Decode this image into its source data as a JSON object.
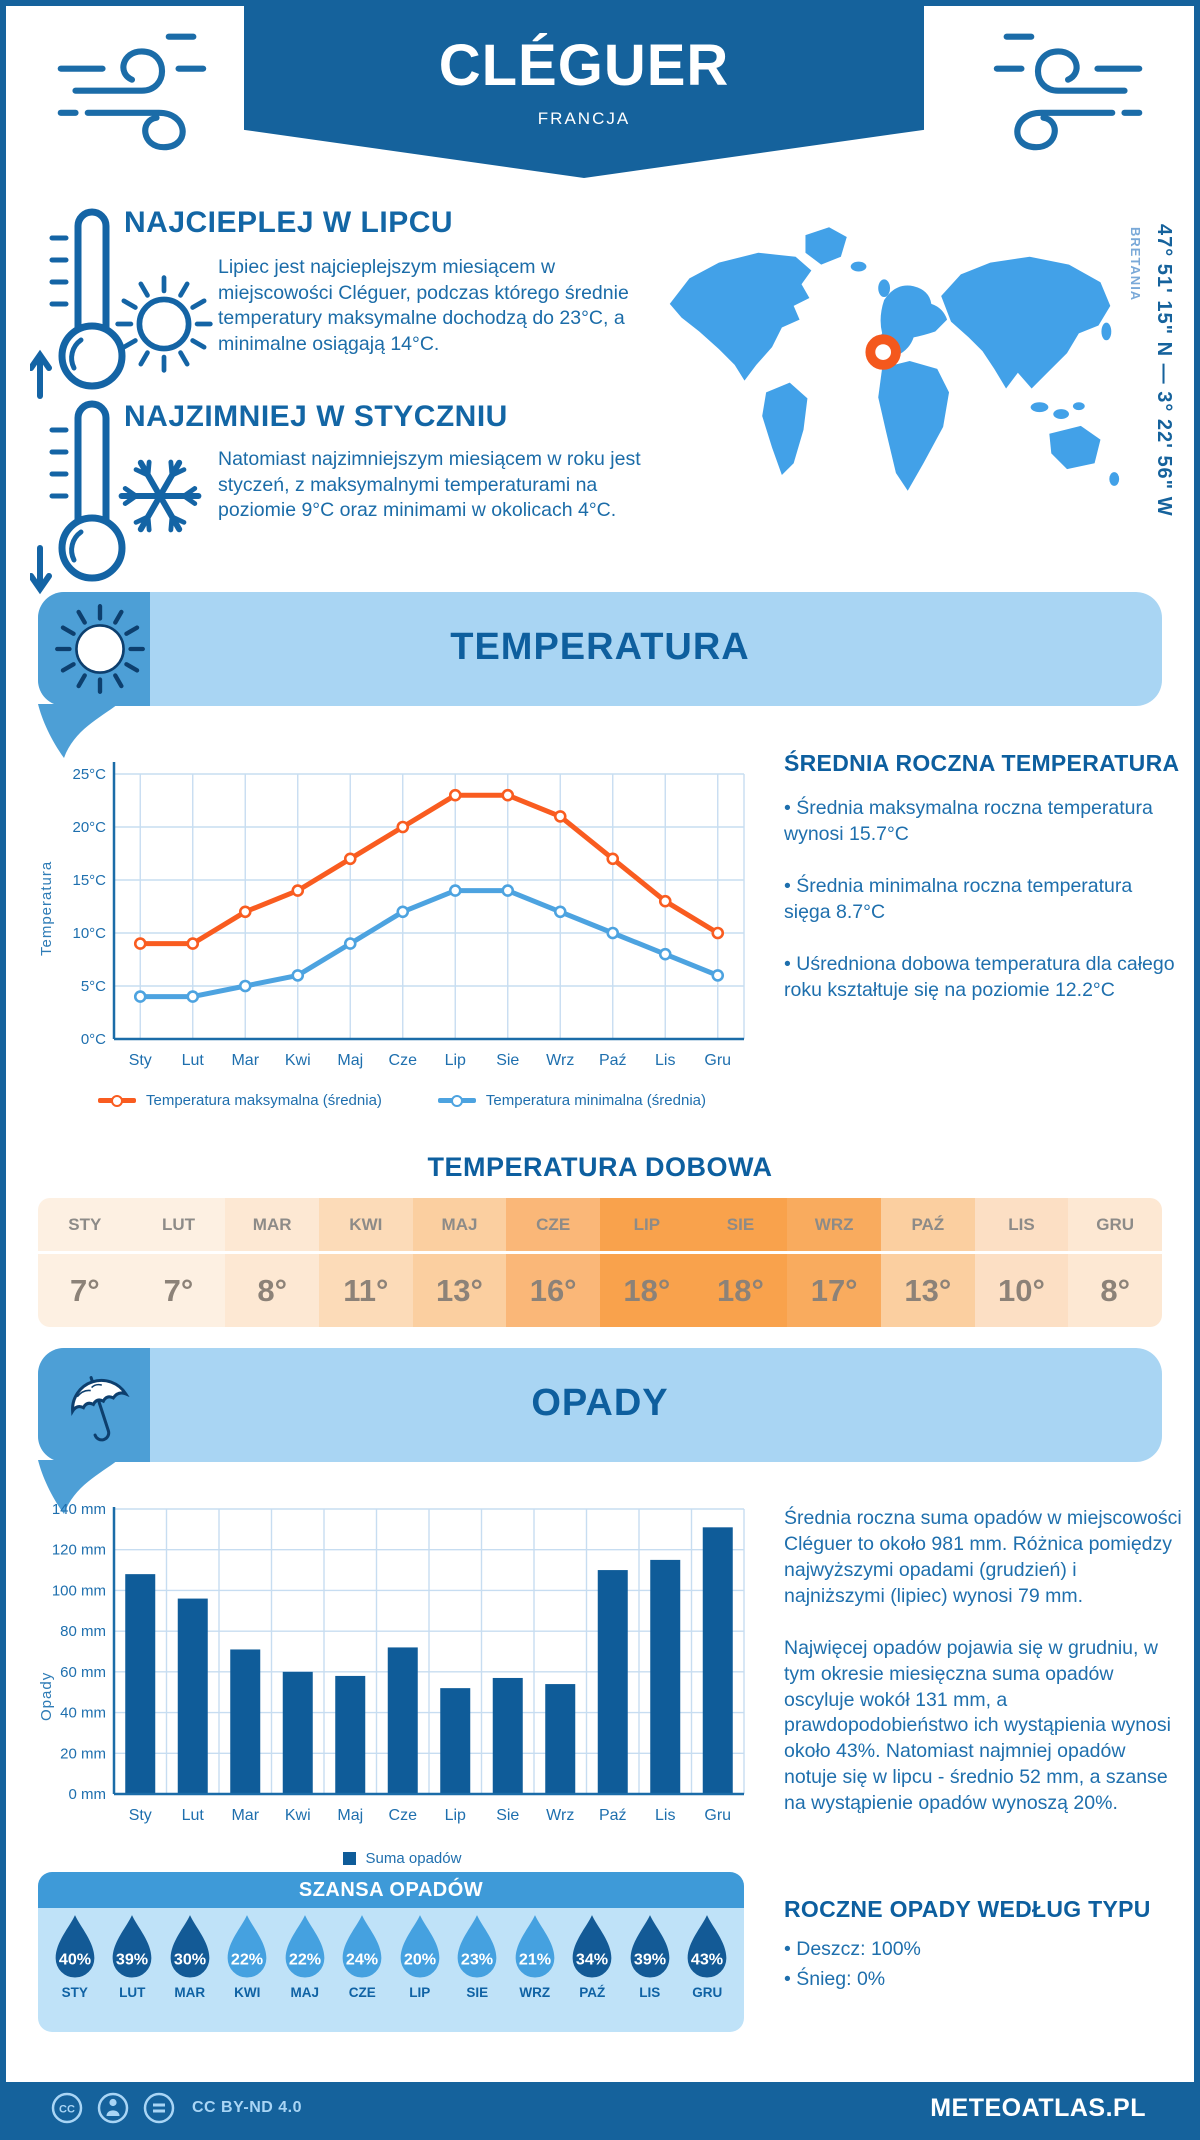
{
  "colors": {
    "primary_dark": "#15629c",
    "text_blue": "#1b6ca8",
    "banner_bg": "#a9d5f3",
    "banner_strip": "#4d9fd6",
    "map_fill": "#42a1e8",
    "marker_orange": "#f4581d",
    "line_max": "#f95c20",
    "line_min": "#4da3e0",
    "bar_fill": "#0f5c99",
    "drop_dark": "#135a96",
    "drop_light": "#45a1e0",
    "chance_header": "#3e9ad8",
    "chance_bg": "#bfe2f8"
  },
  "header": {
    "title": "CLÉGUER",
    "subtitle": "FRANCJA"
  },
  "location": {
    "coordinates": "47° 51' 15\" N — 3° 22' 56\" W",
    "region": "BRETANIA"
  },
  "highlights": {
    "warmest": {
      "title": "NAJCIEPLEJ W LIPCU",
      "text": "Lipiec jest najcieplejszym miesiącem w miejscowości Cléguer, podczas którego średnie temperatury maksymalne dochodzą do 23°C, a minimalne osiągają 14°C."
    },
    "coldest": {
      "title": "NAJZIMNIEJ W STYCZNIU",
      "text": "Natomiast najzimniejszym miesiącem w roku jest styczeń, z maksymalnymi temperaturami na poziomie 9°C oraz minimami w okolicach 4°C."
    }
  },
  "temperature_section": {
    "banner": "TEMPERATURA",
    "annual": {
      "title": "ŚREDNIA ROCZNA TEMPERATURA",
      "bullets": [
        "• Średnia maksymalna roczna temperatura wynosi 15.7°C",
        "• Średnia minimalna roczna temperatura sięga 8.7°C",
        "• Uśredniona dobowa temperatura dla całego roku kształtuje się na poziomie 12.2°C"
      ]
    },
    "daily": {
      "title": "TEMPERATURA DOBOWA",
      "months": [
        "STY",
        "LUT",
        "MAR",
        "KWI",
        "MAJ",
        "CZE",
        "LIP",
        "SIE",
        "WRZ",
        "PAŹ",
        "LIS",
        "GRU"
      ],
      "values": [
        "7°",
        "7°",
        "8°",
        "11°",
        "13°",
        "16°",
        "18°",
        "18°",
        "17°",
        "13°",
        "10°",
        "8°"
      ],
      "cell_colors": [
        "#fdf0e2",
        "#fdf0e2",
        "#fde8d3",
        "#fcdbb8",
        "#fbcfa0",
        "#fab778",
        "#f9a24c",
        "#f9a24c",
        "#f9ab5e",
        "#fbcfa0",
        "#fcdfc4",
        "#fde8d3"
      ]
    }
  },
  "precipitation_section": {
    "banner": "OPADY",
    "paragraphs": [
      "Średnia roczna suma opadów w miejscowości Cléguer to około 981 mm. Różnica pomiędzy najwyższymi opadami (grudzień) i najniższymi (lipiec) wynosi 79 mm.",
      "Najwięcej opadów pojawia się w grudniu, w tym okresie miesięczna suma opadów oscyluje wokół 131 mm, a prawdopodobieństwo ich wystąpienia wynosi około 43%. Natomiast najmniej opadów notuje się w lipcu - średnio 52 mm, a szanse na wystąpienie opadów wynoszą 20%."
    ],
    "types": {
      "title": "ROCZNE OPADY WEDŁUG TYPU",
      "bullets": [
        "• Deszcz: 100%",
        "• Śnieg: 0%"
      ]
    },
    "chance": {
      "title": "SZANSA OPADÓW",
      "months": [
        "STY",
        "LUT",
        "MAR",
        "KWI",
        "MAJ",
        "CZE",
        "LIP",
        "SIE",
        "WRZ",
        "PAŹ",
        "LIS",
        "GRU"
      ],
      "values": [
        "40%",
        "39%",
        "30%",
        "22%",
        "22%",
        "24%",
        "20%",
        "23%",
        "21%",
        "34%",
        "39%",
        "43%"
      ],
      "dark": [
        true,
        true,
        true,
        false,
        false,
        false,
        false,
        false,
        false,
        true,
        true,
        true
      ]
    }
  },
  "chart_data": [
    {
      "type": "line",
      "x": [
        "Sty",
        "Lut",
        "Mar",
        "Kwi",
        "Maj",
        "Cze",
        "Lip",
        "Sie",
        "Wrz",
        "Paź",
        "Lis",
        "Gru"
      ],
      "ylabel": "Temperatura",
      "ylim": [
        0,
        25
      ],
      "ytick_step": 5,
      "ytick_labels": [
        "0°C",
        "5°C",
        "10°C",
        "15°C",
        "20°C",
        "25°C"
      ],
      "grid": true,
      "legend_position": "bottom",
      "series": [
        {
          "name": "Temperatura maksymalna (średnia)",
          "color": "#f95c20",
          "values": [
            9,
            9,
            12,
            14,
            17,
            20,
            23,
            23,
            21,
            17,
            13,
            10
          ]
        },
        {
          "name": "Temperatura minimalna (średnia)",
          "color": "#4da3e0",
          "values": [
            4,
            4,
            5,
            6,
            9,
            12,
            14,
            14,
            12,
            10,
            8,
            6
          ]
        }
      ]
    },
    {
      "type": "bar",
      "categories": [
        "Sty",
        "Lut",
        "Mar",
        "Kwi",
        "Maj",
        "Cze",
        "Lip",
        "Sie",
        "Wrz",
        "Paź",
        "Lis",
        "Gru"
      ],
      "values": [
        108,
        96,
        71,
        60,
        58,
        72,
        52,
        57,
        54,
        110,
        115,
        131
      ],
      "ylabel": "Opady",
      "ylim": [
        0,
        140
      ],
      "ytick_step": 20,
      "ytick_labels": [
        "0 mm",
        "20 mm",
        "40 mm",
        "60 mm",
        "80 mm",
        "100 mm",
        "120 mm",
        "140 mm"
      ],
      "grid": true,
      "color": "#0f5c99",
      "legend": "Suma opadów"
    }
  ],
  "footer": {
    "license": "CC BY-ND 4.0",
    "brand": "METEOATLAS.PL"
  }
}
